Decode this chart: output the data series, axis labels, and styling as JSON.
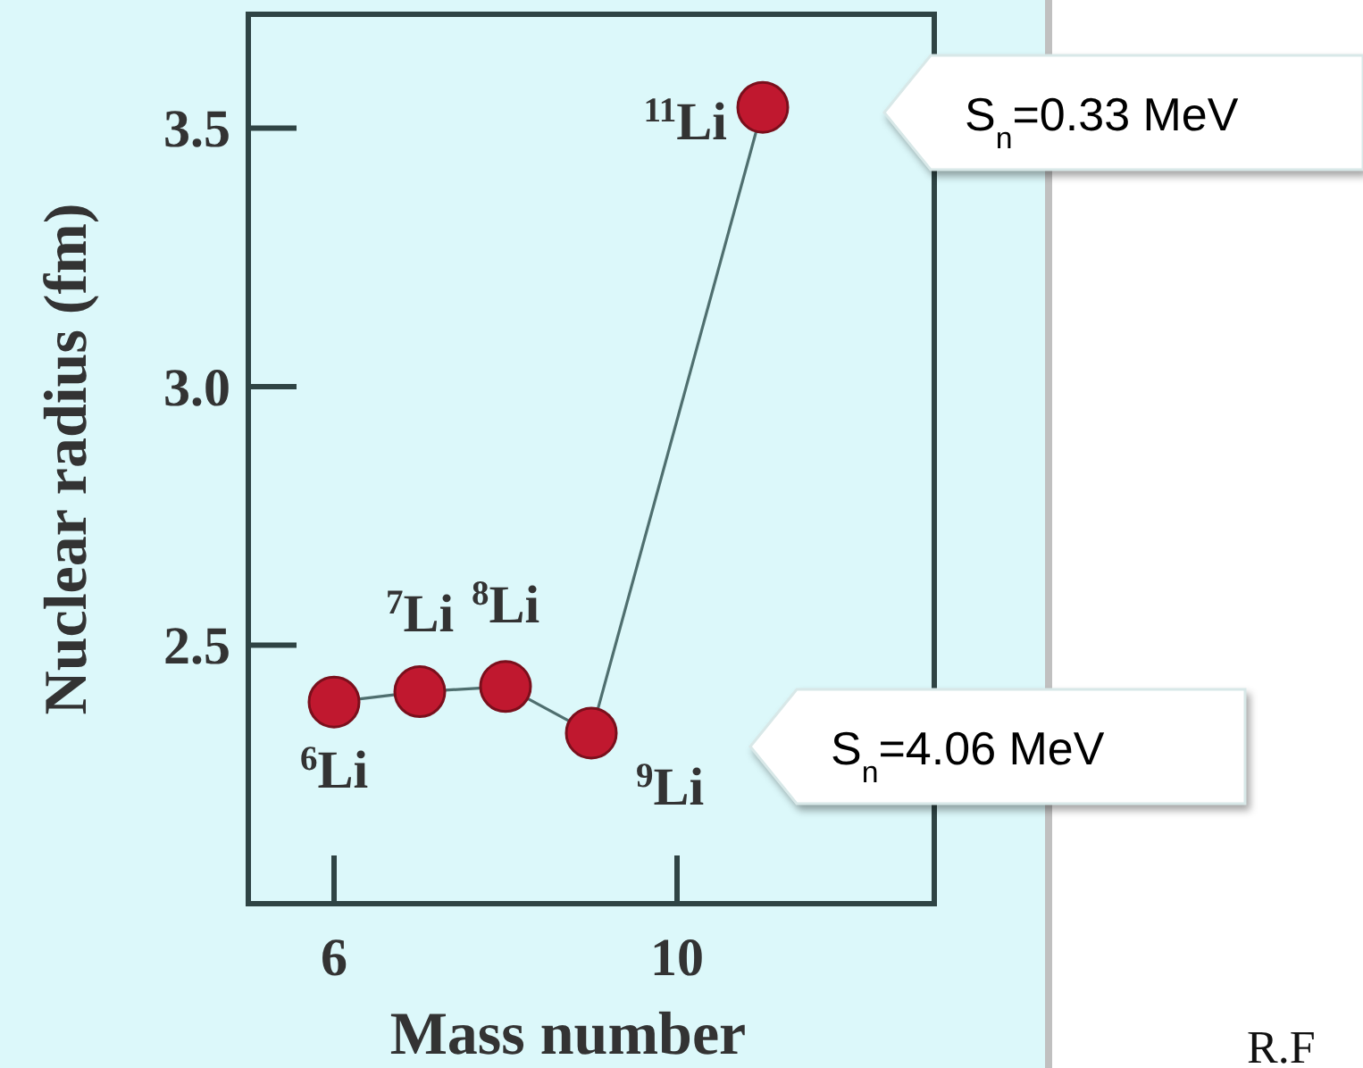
{
  "chart_data": {
    "type": "line",
    "xlabel": "Mass number",
    "ylabel": "Nuclear radius (fm)",
    "x": [
      6,
      7,
      8,
      9,
      11
    ],
    "series": [
      {
        "color": "#c0182f",
        "values": [
          2.39,
          2.41,
          2.42,
          2.33,
          3.54
        ]
      }
    ],
    "xlim": [
      5,
      13
    ],
    "xticks": [
      6,
      10
    ],
    "ylim": [
      2,
      3.72
    ],
    "yticks": [
      {
        "value": 2.5,
        "label": "2.5"
      },
      {
        "value": 3,
        "label": "3.0"
      },
      {
        "value": 3.5,
        "label": "3.5"
      }
    ],
    "marker": "circle",
    "grid": false,
    "annotations": [
      {
        "text": "$^{6}$Li",
        "x": 6,
        "y": 2.39
      },
      {
        "text": "$^{7}$Li",
        "x": 7,
        "y": 2.41
      },
      {
        "text": "$^{8}$Li",
        "x": 8,
        "y": 2.42
      },
      {
        "text": "$^{9}$Li",
        "x": 9,
        "y": 2.33
      },
      {
        "text": "$^{11}$Li",
        "x": 11,
        "y": 3.54
      },
      "S$_{n}$=0.33 MeV",
      "S$_{n}$=4.06 MeV",
      "R.F"
    ]
  }
}
